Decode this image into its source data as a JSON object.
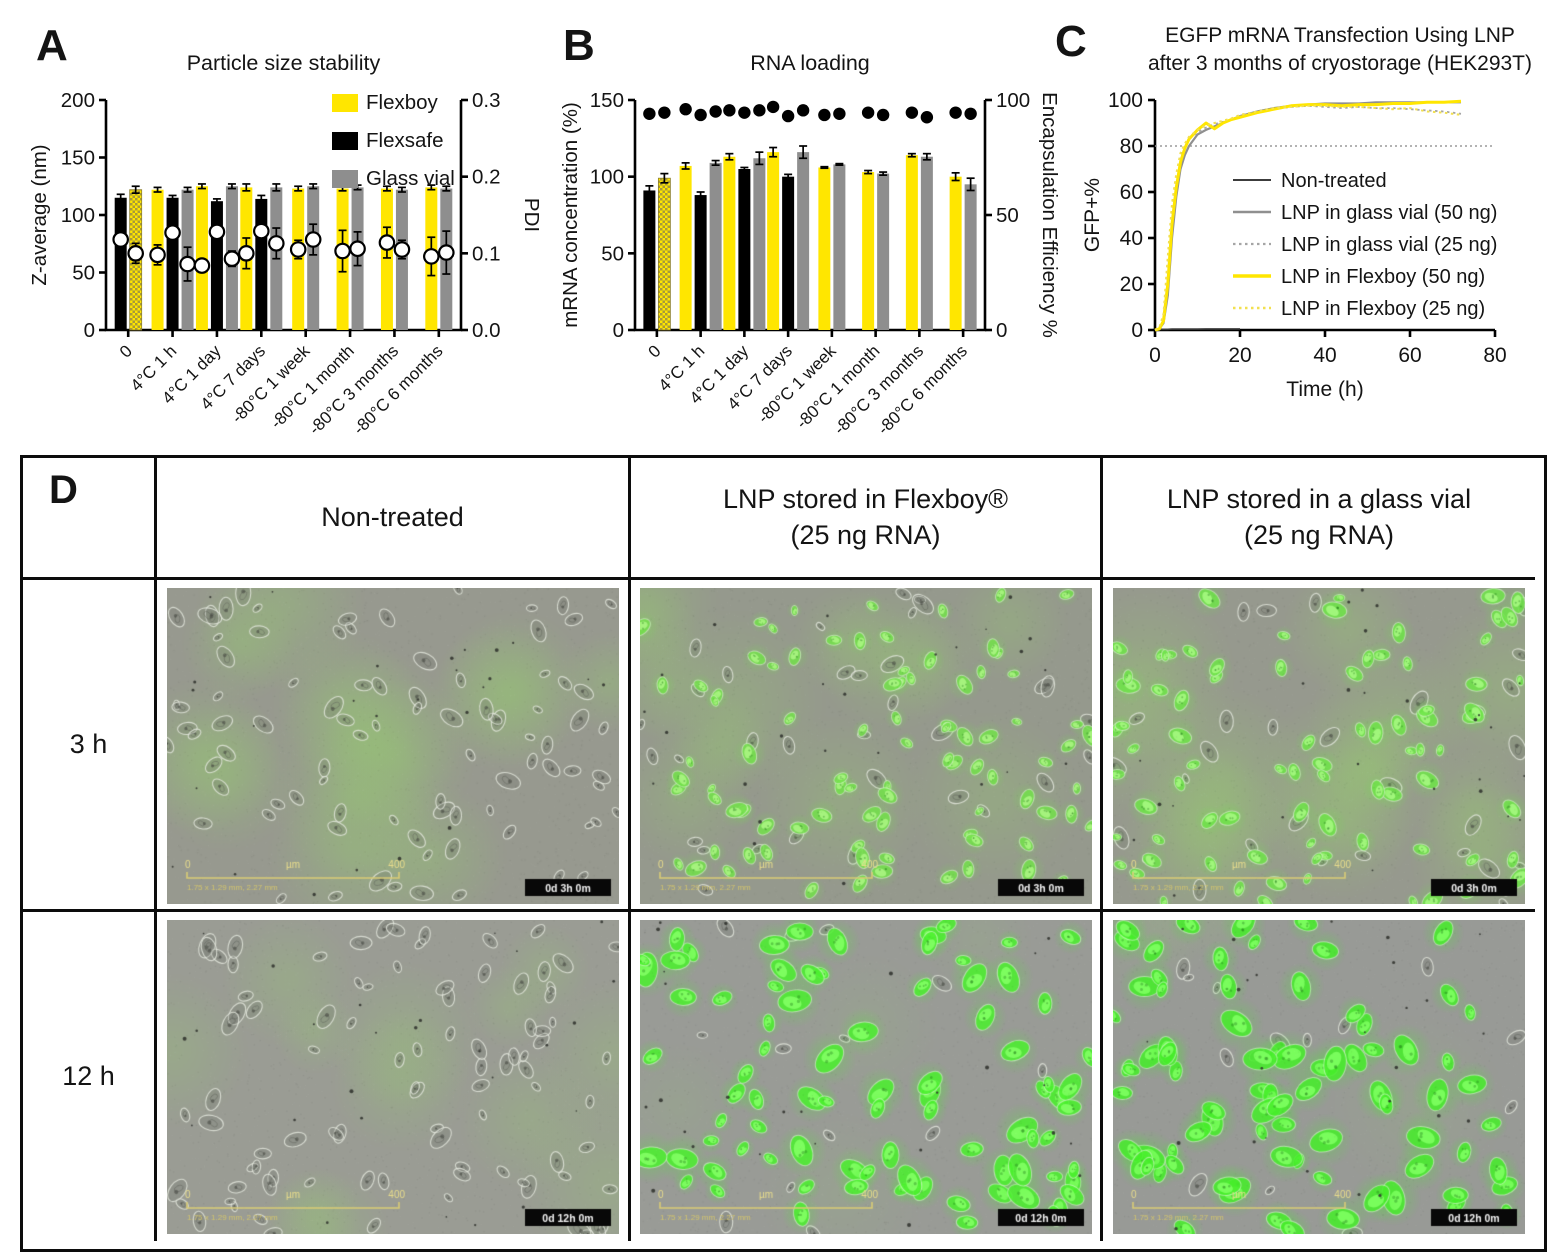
{
  "colors": {
    "yellow": "#FFE600",
    "black": "#000000",
    "gray": "#8E8E8E",
    "hatch_dark": "#A79A39",
    "hline": "#9A9A9A",
    "series": {
      "Flexboy": "#FFE600",
      "Flexsafe": "#000000",
      "Glass vial": "#8E8E8E"
    }
  },
  "chart_data": [
    {
      "id": "A",
      "panel_label": "A",
      "type": "bar",
      "title": "Particle size stability",
      "left_axis": {
        "label": "Z-average (nm)",
        "lim": [
          0,
          200
        ],
        "ticks": [
          0,
          50,
          100,
          150,
          200
        ]
      },
      "right_axis": {
        "label": "PDI",
        "lim": [
          0,
          0.3
        ],
        "ticks": [
          "0.0",
          "0.1",
          "0.2",
          "0.3"
        ]
      },
      "legend": [
        {
          "label": "Flexboy",
          "color": "#FFE600"
        },
        {
          "label": "Flexsafe",
          "color": "#000000"
        },
        {
          "label": "Glass vial",
          "color": "#8E8E8E"
        }
      ],
      "categories": [
        "0",
        "4°C 1 h",
        "4°C 1 day",
        "4°C 7 days",
        "-80°C 1 week",
        "-80°C 1 month",
        "-80°C 3 months",
        "-80°C 6 months"
      ],
      "groups": [
        {
          "label": "0",
          "bars": [
            {
              "series": "Flexsafe",
              "value": 115,
              "err": 3,
              "pdi": 0.118,
              "pdi_err": 0.01
            },
            {
              "series": "Flexboy",
              "value": 122,
              "err": 3,
              "pdi": 0.1,
              "pdi_err": 0.013,
              "hatched": true
            }
          ]
        },
        {
          "label": "4°C 1 h",
          "bars": [
            {
              "series": "Flexboy",
              "value": 122,
              "err": 2,
              "pdi": 0.098,
              "pdi_err": 0.013
            },
            {
              "series": "Flexsafe",
              "value": 115,
              "err": 2,
              "pdi": 0.127,
              "pdi_err": 0.01
            },
            {
              "series": "Glass vial",
              "value": 122,
              "err": 2,
              "pdi": 0.086,
              "pdi_err": 0.022
            }
          ]
        },
        {
          "label": "4°C 1 day",
          "bars": [
            {
              "series": "Flexboy",
              "value": 125,
              "err": 2,
              "pdi": 0.084,
              "pdi_err": 0.005
            },
            {
              "series": "Flexsafe",
              "value": 112,
              "err": 2,
              "pdi": 0.128,
              "pdi_err": 0.012
            },
            {
              "series": "Glass vial",
              "value": 125,
              "err": 2,
              "pdi": 0.093,
              "pdi_err": 0.01
            }
          ]
        },
        {
          "label": "4°C 7 days",
          "bars": [
            {
              "series": "Flexboy",
              "value": 124,
              "err": 3,
              "pdi": 0.1,
              "pdi_err": 0.02
            },
            {
              "series": "Flexsafe",
              "value": 114,
              "err": 3,
              "pdi": 0.129,
              "pdi_err": 0.008
            },
            {
              "series": "Glass vial",
              "value": 124,
              "err": 3,
              "pdi": 0.113,
              "pdi_err": 0.02
            }
          ]
        },
        {
          "label": "-80°C 1 week",
          "bars": [
            {
              "series": "Flexboy",
              "value": 123,
              "err": 2,
              "pdi": 0.105,
              "pdi_err": 0.012
            },
            {
              "series": "Glass vial",
              "value": 125,
              "err": 2,
              "pdi": 0.118,
              "pdi_err": 0.02
            }
          ]
        },
        {
          "label": "-80°C 1 month",
          "bars": [
            {
              "series": "Flexboy",
              "value": 123,
              "err": 2,
              "pdi": 0.103,
              "pdi_err": 0.027
            },
            {
              "series": "Glass vial",
              "value": 124,
              "err": 2,
              "pdi": 0.106,
              "pdi_err": 0.022
            }
          ]
        },
        {
          "label": "-80°C 3 months",
          "bars": [
            {
              "series": "Flexboy",
              "value": 123,
              "err": 2,
              "pdi": 0.114,
              "pdi_err": 0.02
            },
            {
              "series": "Glass vial",
              "value": 122,
              "err": 2,
              "pdi": 0.105,
              "pdi_err": 0.012
            }
          ]
        },
        {
          "label": "-80°C 6 months",
          "bars": [
            {
              "series": "Flexboy",
              "value": 124,
              "err": 2,
              "pdi": 0.096,
              "pdi_err": 0.025
            },
            {
              "series": "Glass vial",
              "value": 123,
              "err": 2,
              "pdi": 0.101,
              "pdi_err": 0.028
            }
          ]
        }
      ]
    },
    {
      "id": "B",
      "panel_label": "B",
      "type": "bar",
      "title": "RNA loading",
      "left_axis": {
        "label": "mRNA concentration (%)",
        "lim": [
          0,
          150
        ],
        "ticks": [
          0,
          50,
          100,
          150
        ]
      },
      "right_axis": {
        "label": "Encapsulation Efficiency %",
        "lim": [
          0,
          100
        ],
        "ticks": [
          "0",
          "50",
          "100"
        ]
      },
      "categories": [
        "0",
        "4°C 1 h",
        "4°C 1 day",
        "4°C 7 days",
        "-80°C 1 week",
        "-80°C 1 month",
        "-80°C 3 months",
        "-80°C 6 months"
      ],
      "groups": [
        {
          "label": "0",
          "bars": [
            {
              "series": "Flexsafe",
              "value": 91,
              "err": 3,
              "ee": 94
            },
            {
              "series": "Flexboy",
              "value": 99,
              "err": 3,
              "ee": 94.5,
              "hatched": true
            }
          ]
        },
        {
          "label": "4°C 1 h",
          "bars": [
            {
              "series": "Flexboy",
              "value": 107,
              "err": 2,
              "ee": 96
            },
            {
              "series": "Flexsafe",
              "value": 88,
              "err": 2,
              "ee": 93.5
            },
            {
              "series": "Glass vial",
              "value": 109,
              "err": 1.5,
              "ee": 95
            }
          ]
        },
        {
          "label": "4°C 1 day",
          "bars": [
            {
              "series": "Flexboy",
              "value": 113,
              "err": 2,
              "ee": 95.5
            },
            {
              "series": "Flexsafe",
              "value": 105,
              "err": 1,
              "ee": 94.5
            },
            {
              "series": "Glass vial",
              "value": 112,
              "err": 4,
              "ee": 95.5
            }
          ]
        },
        {
          "label": "4°C 7 days",
          "bars": [
            {
              "series": "Flexboy",
              "value": 116,
              "err": 3,
              "ee": 97
            },
            {
              "series": "Flexsafe",
              "value": 100,
              "err": 1.5,
              "ee": 93
            },
            {
              "series": "Glass vial",
              "value": 116,
              "err": 4,
              "ee": 95.5
            }
          ]
        },
        {
          "label": "-80°C 1 week",
          "bars": [
            {
              "series": "Flexboy",
              "value": 106,
              "err": 0.5,
              "ee": 93.5
            },
            {
              "series": "Glass vial",
              "value": 108,
              "err": 0.5,
              "ee": 94
            }
          ]
        },
        {
          "label": "-80°C 1 month",
          "bars": [
            {
              "series": "Flexboy",
              "value": 103,
              "err": 1,
              "ee": 94.5
            },
            {
              "series": "Glass vial",
              "value": 102,
              "err": 1,
              "ee": 93.5
            }
          ]
        },
        {
          "label": "-80°C 3 months",
          "bars": [
            {
              "series": "Flexboy",
              "value": 114,
              "err": 1,
              "ee": 94.5
            },
            {
              "series": "Glass vial",
              "value": 113,
              "err": 2,
              "ee": 92.5
            }
          ]
        },
        {
          "label": "-80°C 6 months",
          "bars": [
            {
              "series": "Flexboy",
              "value": 100,
              "err": 2.5,
              "ee": 94.5
            },
            {
              "series": "Glass vial",
              "value": 95,
              "err": 4,
              "ee": 94
            }
          ]
        }
      ]
    },
    {
      "id": "C",
      "panel_label": "C",
      "type": "line",
      "title_lines": [
        "EGFP mRNA Transfection Using LNP",
        "after 3 months of cryostorage (HEK293T)"
      ],
      "xlabel": "Time (h)",
      "ylabel": "GFP+%",
      "xlim": [
        0,
        80
      ],
      "ylim": [
        0,
        100
      ],
      "xticks": [
        0,
        20,
        40,
        60,
        80
      ],
      "yticks": [
        0,
        20,
        40,
        60,
        80,
        100
      ],
      "hline": 80,
      "x": [
        0,
        1,
        2,
        3,
        4,
        5,
        6,
        7,
        8,
        10,
        12,
        14,
        16,
        18,
        20,
        24,
        28,
        32,
        36,
        40,
        44,
        48,
        52,
        56,
        60,
        64,
        68,
        72
      ],
      "series": [
        {
          "name": "Non-treated",
          "color": "#3C3C3C",
          "dash": "solid",
          "width": 1.6,
          "values": [
            0.3,
            0.3,
            0.3,
            0.3,
            0.4,
            0.4,
            0.4,
            0.4,
            0.4,
            0.4,
            0.5,
            0.5,
            0.5,
            0.5,
            0.5,
            null,
            null,
            null,
            null,
            null,
            null,
            null,
            null,
            null,
            null,
            null,
            null,
            null
          ]
        },
        {
          "name": "LNP in glass vial (50 ng)",
          "color": "#8F8F8F",
          "dash": "solid",
          "width": 2.2,
          "values": [
            0,
            0.5,
            3,
            15,
            40,
            58,
            70,
            76,
            80,
            85,
            87,
            88.5,
            90,
            91.5,
            93,
            95,
            96.5,
            97.5,
            98,
            98.5,
            98.5,
            98.5,
            99,
            99,
            99,
            99,
            99,
            99
          ]
        },
        {
          "name": "LNP in glass vial (25 ng)",
          "color": "#A5A5A5",
          "dash": "dot",
          "width": 1.8,
          "values": [
            0,
            1,
            6,
            28,
            52,
            66,
            75,
            80,
            83,
            86,
            88,
            89.5,
            90.5,
            91.5,
            93,
            95,
            96,
            97,
            97.5,
            97,
            96.5,
            97,
            96.5,
            96.5,
            96,
            95.5,
            95,
            94
          ]
        },
        {
          "name": "LNP in Flexboy (50 ng)",
          "color": "#FFE600",
          "dash": "solid",
          "width": 3,
          "values": [
            0,
            0.5,
            4,
            20,
            46,
            62,
            73,
            79,
            83,
            87,
            90,
            87.5,
            90,
            91.5,
            92.5,
            94.5,
            96,
            97.5,
            98,
            98,
            97.5,
            98,
            98,
            98.5,
            98.5,
            99,
            99,
            99.5
          ]
        },
        {
          "name": "LNP in Flexboy (25 ng)",
          "color": "#F2E04F",
          "dash": "dot",
          "width": 2,
          "values": [
            0,
            1,
            7,
            32,
            55,
            68,
            77,
            81,
            84,
            87,
            89,
            90,
            91,
            92,
            93.5,
            95,
            96.5,
            97,
            97.5,
            97.5,
            97,
            97,
            96.5,
            96,
            96.5,
            95,
            94.5,
            93.5
          ]
        }
      ]
    }
  ],
  "panel_d": {
    "label": "D",
    "columns": [
      [
        "Non-treated"
      ],
      [
        "LNP stored in Flexboy®",
        "(25 ng RNA)"
      ],
      [
        "LNP stored in a glass vial",
        "(25 ng RNA)"
      ]
    ],
    "rows": [
      "3 h",
      "12 h"
    ],
    "scalebar": {
      "left": "0",
      "mid": "µm",
      "right": "400",
      "sub": "1.75 x 1.29 mm, 2.27 mm"
    },
    "timestamps": [
      "0d 3h 0m",
      "0d 12h 0m"
    ],
    "images": [
      {
        "name": "non-treated-3h",
        "row": 0,
        "bg": "#97998F",
        "haze_count": 13,
        "haze_alpha": 0.26,
        "green_cells": 0,
        "outline_cells": 88,
        "cell_min": 5,
        "cell_max": 10,
        "green_rgb": [
          115,
          225,
          75
        ],
        "seed": 11
      },
      {
        "name": "flexboy-3h",
        "row": 0,
        "bg": "#95998D",
        "haze_count": 12,
        "haze_alpha": 0.22,
        "green_cells": 88,
        "outline_cells": 34,
        "cell_min": 4,
        "cell_max": 9,
        "green_rgb": [
          115,
          225,
          75
        ],
        "seed": 22
      },
      {
        "name": "glass-vial-3h",
        "row": 0,
        "bg": "#96998E",
        "haze_count": 13,
        "haze_alpha": 0.26,
        "green_cells": 82,
        "outline_cells": 30,
        "cell_min": 4,
        "cell_max": 10,
        "green_rgb": [
          110,
          228,
          72
        ],
        "seed": 33
      },
      {
        "name": "non-treated-12h",
        "row": 1,
        "bg": "#9A9C94",
        "haze_count": 12,
        "haze_alpha": 0.2,
        "green_cells": 0,
        "outline_cells": 92,
        "cell_min": 5,
        "cell_max": 10,
        "green_rgb": [
          115,
          225,
          75
        ],
        "seed": 44
      },
      {
        "name": "flexboy-12h",
        "row": 1,
        "bg": "#999B96",
        "haze_count": 4,
        "haze_alpha": 0.1,
        "green_cells": 84,
        "outline_cells": 14,
        "cell_min": 6,
        "cell_max": 14,
        "green_rgb": [
          75,
          240,
          45
        ],
        "seed": 55
      },
      {
        "name": "glass-vial-12h",
        "row": 1,
        "bg": "#989A96",
        "haze_count": 4,
        "haze_alpha": 0.1,
        "green_cells": 80,
        "outline_cells": 14,
        "cell_min": 6,
        "cell_max": 14,
        "green_rgb": [
          70,
          238,
          42
        ],
        "seed": 66
      }
    ]
  }
}
